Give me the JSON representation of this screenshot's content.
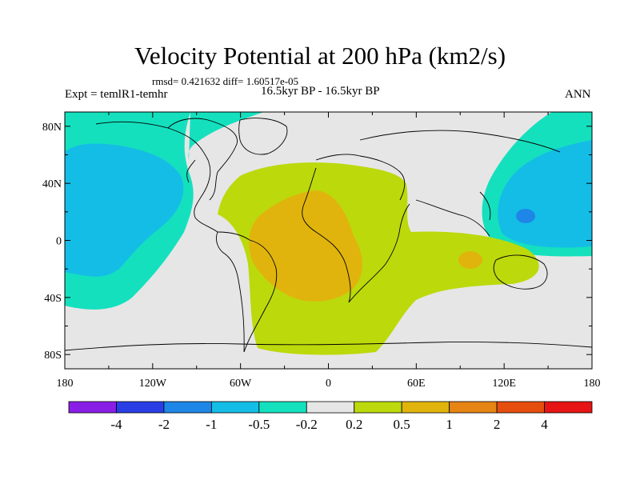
{
  "title": "Velocity Potential at 200 hPa (km2/s)",
  "stats": "rmsd= 0.421632 diff= 1.60517e-05",
  "experiment": "Expt = temlR1-temhr",
  "period": "16.5kyr BP - 16.5kyr BP",
  "season": "ANN",
  "y_axis": {
    "labels": [
      "80N",
      "40N",
      "0",
      "40S",
      "80S"
    ]
  },
  "x_axis": {
    "labels": [
      "180",
      "120W",
      "60W",
      "0",
      "60E",
      "120E",
      "180"
    ]
  },
  "colorbar": {
    "colors": [
      "#8a1ee6",
      "#2a3ee6",
      "#1e86e6",
      "#14bde6",
      "#14e0be",
      "#e6e6e6",
      "#bcd90c",
      "#e0b40c",
      "#e68414",
      "#e64e0e",
      "#e61414"
    ],
    "labels": [
      "-4",
      "-2",
      "-1",
      "-0.5",
      "-0.2",
      "0.2",
      "0.5",
      "1",
      "2",
      "4"
    ]
  },
  "map_colors": {
    "background": "#e6e6e6",
    "neg_weak": "#14e0be",
    "neg_mid": "#14bde6",
    "neg_strong": "#1e86e6",
    "pos_weak": "#bcd90c",
    "pos_mid": "#e0b40c"
  }
}
